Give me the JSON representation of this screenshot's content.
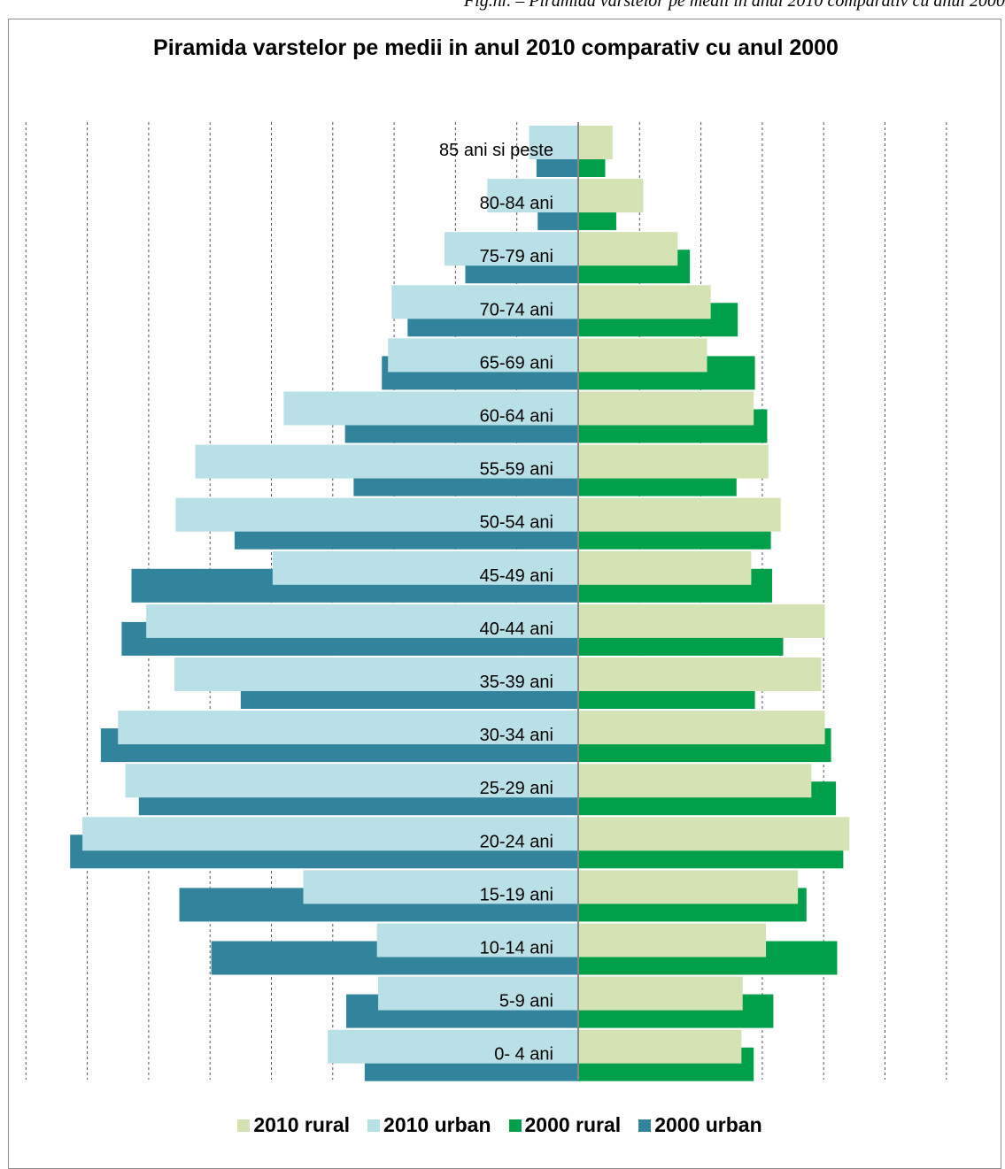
{
  "caption": "Fig.nr.  – Piramida varstelor pe medii in anul 2010 comparativ cu anul 2000",
  "colors": {
    "rural_2010": "#d4e2b4",
    "urban_2010": "#b8e0e6",
    "rural_2000": "#00a04a",
    "urban_2000": "#31849b",
    "gridline": "#555555",
    "axis": "#888888"
  },
  "chart_data": {
    "type": "bar",
    "title": "Piramida varstelor pe medii in anul 2010 comparativ cu anul 2000",
    "orientation": "horizontal-population-pyramid",
    "categories": [
      "85 ani si peste",
      "80-84 ani",
      "75-79 ani",
      "70-74 ani",
      "65-69 ani",
      "60-64 ani",
      "55-59 ani",
      "50-54 ani",
      "45-49 ani",
      "40-44 ani",
      "35-39 ani",
      "30-34 ani",
      "25-29 ani",
      "20-24 ani",
      "15-19 ani",
      "10-14 ani",
      "5-9 ani",
      "0- 4 ani"
    ],
    "series": [
      {
        "name": "2010 rural",
        "side": "right",
        "values": [
          0.56,
          1.06,
          1.62,
          2.16,
          2.1,
          2.86,
          3.1,
          3.3,
          2.82,
          4.02,
          3.96,
          4.02,
          3.8,
          4.42,
          3.58,
          3.06,
          2.68,
          2.66
        ]
      },
      {
        "name": "2010 urban",
        "side": "left",
        "values": [
          0.8,
          1.48,
          2.18,
          3.04,
          3.1,
          4.8,
          6.24,
          6.56,
          4.98,
          7.04,
          6.58,
          7.5,
          7.38,
          8.08,
          4.48,
          3.28,
          3.26,
          4.08
        ]
      },
      {
        "name": "2000 rural",
        "side": "right",
        "values": [
          0.44,
          0.62,
          1.82,
          2.6,
          2.88,
          3.08,
          2.58,
          3.14,
          3.16,
          3.34,
          2.88,
          4.12,
          4.2,
          4.32,
          3.72,
          4.22,
          3.18,
          2.86
        ]
      },
      {
        "name": "2000 urban",
        "side": "left",
        "values": [
          0.68,
          0.66,
          1.84,
          2.78,
          3.2,
          3.8,
          3.66,
          5.6,
          7.28,
          7.44,
          5.5,
          7.78,
          7.16,
          8.28,
          6.5,
          5.98,
          3.78,
          3.48
        ]
      }
    ],
    "xlim": [
      -9,
      6
    ],
    "grid": true,
    "legend": "bottom"
  }
}
